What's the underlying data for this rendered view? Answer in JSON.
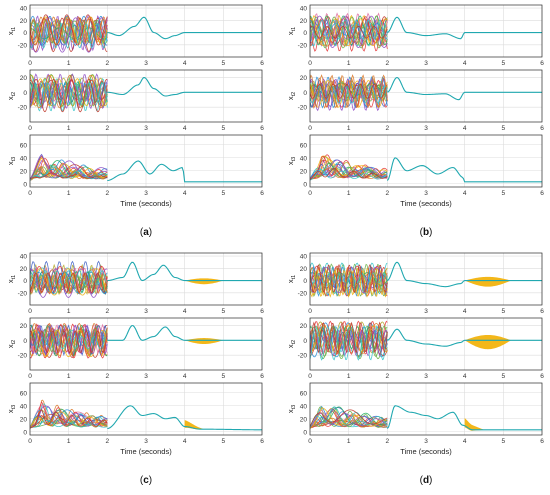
{
  "figure": {
    "panels": [
      {
        "caption": "(a)",
        "x_axis_label": "Time (seconds)",
        "panel_type": "hump-series"
      },
      {
        "caption": "(b)",
        "x_axis_label": "Time (seconds)",
        "panel_type": "hump-series"
      },
      {
        "caption": "(c)",
        "x_axis_label": "Time (seconds)",
        "panel_type": "hump-series"
      },
      {
        "caption": "(d)",
        "x_axis_label": "Time (seconds)",
        "panel_type": "hump-series"
      }
    ]
  },
  "chart_data": [
    {
      "type": "line",
      "panel": "(a)",
      "xlabel": "Time (seconds)",
      "x_ticks": [
        0,
        1,
        2,
        3,
        4,
        5,
        6
      ],
      "xlim": [
        0,
        6
      ],
      "grid": true,
      "subplots": [
        {
          "ylabel": "x",
          "ylabel_subscript": "t1",
          "ylim": [
            -40,
            45
          ],
          "y_ticks": [
            -20,
            0,
            20,
            40
          ],
          "series_count": 20,
          "converged_trace": [
            [
              2,
              0
            ],
            [
              2.3,
              -5
            ],
            [
              2.7,
              10
            ],
            [
              2.95,
              25
            ],
            [
              3.2,
              0
            ],
            [
              3.5,
              -10
            ],
            [
              3.75,
              -5
            ],
            [
              4,
              0
            ],
            [
              6,
              0
            ]
          ]
        },
        {
          "ylabel": "x",
          "ylabel_subscript": "t2",
          "ylim": [
            -40,
            30
          ],
          "y_ticks": [
            -20,
            0,
            20
          ],
          "series_count": 20,
          "converged_trace": [
            [
              2,
              0
            ],
            [
              2.4,
              -3
            ],
            [
              2.8,
              10
            ],
            [
              2.95,
              20
            ],
            [
              3.2,
              5
            ],
            [
              3.5,
              -5
            ],
            [
              3.75,
              -3
            ],
            [
              4,
              0
            ],
            [
              6,
              0
            ]
          ]
        },
        {
          "ylabel": "x",
          "ylabel_subscript": "t3",
          "ylim": [
            -5,
            75
          ],
          "y_ticks": [
            0,
            20,
            40,
            60
          ],
          "series_count": 20,
          "converged_trace": [
            [
              2,
              5
            ],
            [
              2.4,
              15
            ],
            [
              2.8,
              35
            ],
            [
              3.1,
              15
            ],
            [
              3.4,
              30
            ],
            [
              3.7,
              20
            ],
            [
              3.95,
              25
            ],
            [
              4,
              3
            ],
            [
              6,
              3
            ]
          ]
        }
      ]
    },
    {
      "type": "line",
      "panel": "(b)",
      "xlabel": "Time (seconds)",
      "x_ticks": [
        0,
        1,
        2,
        3,
        4,
        5,
        6
      ],
      "xlim": [
        0,
        6
      ],
      "grid": true,
      "subplots": [
        {
          "ylabel": "x",
          "ylabel_subscript": "t1",
          "ylim": [
            -40,
            45
          ],
          "y_ticks": [
            -20,
            0,
            20,
            40
          ],
          "series_count": 20,
          "converged_trace": [
            [
              2,
              0
            ],
            [
              2.25,
              25
            ],
            [
              2.5,
              0
            ],
            [
              3,
              -5
            ],
            [
              3.5,
              -2
            ],
            [
              3.9,
              -10
            ],
            [
              4,
              0
            ],
            [
              6,
              0
            ]
          ]
        },
        {
          "ylabel": "x",
          "ylabel_subscript": "t2",
          "ylim": [
            -40,
            30
          ],
          "y_ticks": [
            -20,
            0,
            20
          ],
          "series_count": 20,
          "converged_trace": [
            [
              2,
              0
            ],
            [
              2.25,
              20
            ],
            [
              2.5,
              0
            ],
            [
              3,
              -3
            ],
            [
              3.5,
              -2
            ],
            [
              3.85,
              -10
            ],
            [
              4,
              0
            ],
            [
              6,
              0
            ]
          ]
        },
        {
          "ylabel": "x",
          "ylabel_subscript": "t3",
          "ylim": [
            -5,
            75
          ],
          "y_ticks": [
            0,
            20,
            40,
            60
          ],
          "series_count": 20,
          "converged_trace": [
            [
              2,
              5
            ],
            [
              2.2,
              40
            ],
            [
              2.5,
              20
            ],
            [
              2.9,
              28
            ],
            [
              3.3,
              15
            ],
            [
              3.7,
              25
            ],
            [
              3.95,
              10
            ],
            [
              4,
              3
            ],
            [
              6,
              3
            ]
          ]
        }
      ]
    },
    {
      "type": "line",
      "panel": "(c)",
      "xlabel": "Time (seconds)",
      "x_ticks": [
        0,
        1,
        2,
        3,
        4,
        5,
        6
      ],
      "xlim": [
        0,
        6
      ],
      "grid": true,
      "subplots": [
        {
          "ylabel": "x",
          "ylabel_subscript": "t1",
          "ylim": [
            -40,
            45
          ],
          "y_ticks": [
            -20,
            0,
            20,
            40
          ],
          "series_count": 20,
          "converged_trace": [
            [
              2,
              0
            ],
            [
              2.4,
              5
            ],
            [
              2.65,
              30
            ],
            [
              2.9,
              0
            ],
            [
              3.2,
              10
            ],
            [
              3.45,
              25
            ],
            [
              3.75,
              5
            ],
            [
              4,
              0
            ],
            [
              6,
              0
            ]
          ],
          "spread_band": {
            "x_start": 4.0,
            "x_end": 5.0,
            "max_amplitude": 6
          }
        },
        {
          "ylabel": "x",
          "ylabel_subscript": "t2",
          "ylim": [
            -40,
            30
          ],
          "y_ticks": [
            -20,
            0,
            20
          ],
          "series_count": 20,
          "converged_trace": [
            [
              2,
              0
            ],
            [
              2.4,
              0
            ],
            [
              2.65,
              20
            ],
            [
              2.9,
              0
            ],
            [
              3.2,
              5
            ],
            [
              3.5,
              18
            ],
            [
              3.75,
              5
            ],
            [
              4,
              0
            ],
            [
              6,
              0
            ]
          ],
          "spread_band": {
            "x_start": 4.0,
            "x_end": 5.0,
            "max_amplitude": 5
          }
        },
        {
          "ylabel": "x",
          "ylabel_subscript": "t3",
          "ylim": [
            -5,
            75
          ],
          "y_ticks": [
            0,
            20,
            40,
            60
          ],
          "series_count": 20,
          "converged_trace": [
            [
              2,
              5
            ],
            [
              2.6,
              40
            ],
            [
              2.9,
              25
            ],
            [
              3.2,
              28
            ],
            [
              3.5,
              20
            ],
            [
              3.75,
              22
            ],
            [
              4,
              8
            ],
            [
              4.4,
              4
            ],
            [
              6,
              3
            ]
          ],
          "spread_band": {
            "x_start": 4.0,
            "x_end": 4.5,
            "max_amplitude": 10
          }
        }
      ]
    },
    {
      "type": "line",
      "panel": "(d)",
      "xlabel": "Time (seconds)",
      "x_ticks": [
        0,
        1,
        2,
        3,
        4,
        5,
        6
      ],
      "xlim": [
        0,
        6
      ],
      "grid": true,
      "subplots": [
        {
          "ylabel": "x",
          "ylabel_subscript": "t1",
          "ylim": [
            -40,
            45
          ],
          "y_ticks": [
            -20,
            0,
            20,
            40
          ],
          "series_count": 20,
          "converged_trace": [
            [
              2,
              0
            ],
            [
              2.25,
              30
            ],
            [
              2.5,
              0
            ],
            [
              3,
              -5
            ],
            [
              3.5,
              -10
            ],
            [
              3.9,
              -5
            ],
            [
              4,
              0
            ],
            [
              6,
              0
            ]
          ],
          "spread_band": {
            "x_start": 4.0,
            "x_end": 5.2,
            "max_amplitude": 10
          }
        },
        {
          "ylabel": "x",
          "ylabel_subscript": "t2",
          "ylim": [
            -40,
            30
          ],
          "y_ticks": [
            -20,
            0,
            20
          ],
          "series_count": 20,
          "converged_trace": [
            [
              2,
              0
            ],
            [
              2.25,
              15
            ],
            [
              2.5,
              0
            ],
            [
              3,
              -5
            ],
            [
              3.5,
              -8
            ],
            [
              3.9,
              -3
            ],
            [
              4,
              0
            ],
            [
              6,
              0
            ]
          ],
          "spread_band": {
            "x_start": 4.0,
            "x_end": 5.2,
            "max_amplitude": 12
          }
        },
        {
          "ylabel": "x",
          "ylabel_subscript": "t3",
          "ylim": [
            -5,
            75
          ],
          "y_ticks": [
            0,
            20,
            40,
            60
          ],
          "series_count": 20,
          "converged_trace": [
            [
              2,
              5
            ],
            [
              2.2,
              40
            ],
            [
              2.6,
              30
            ],
            [
              3,
              25
            ],
            [
              3.3,
              20
            ],
            [
              3.7,
              30
            ],
            [
              3.95,
              10
            ],
            [
              4.2,
              3
            ],
            [
              6,
              3
            ]
          ],
          "spread_band": {
            "x_start": 4.0,
            "x_end": 4.5,
            "max_amplitude": 12
          }
        }
      ]
    }
  ],
  "style": {
    "axis_color": "#2b2b2b",
    "grid_color": "#dcdcdc",
    "converged_color": "#20a8b0",
    "spread_color": "#f2b30e",
    "palette": [
      "#e4383b",
      "#2a8fd6",
      "#6bb34a",
      "#f2b30e",
      "#8f4cc4",
      "#d97a2b",
      "#35c3c8",
      "#c0392b",
      "#b5a92a",
      "#4062c4",
      "#e06fa2",
      "#27ae60"
    ]
  }
}
